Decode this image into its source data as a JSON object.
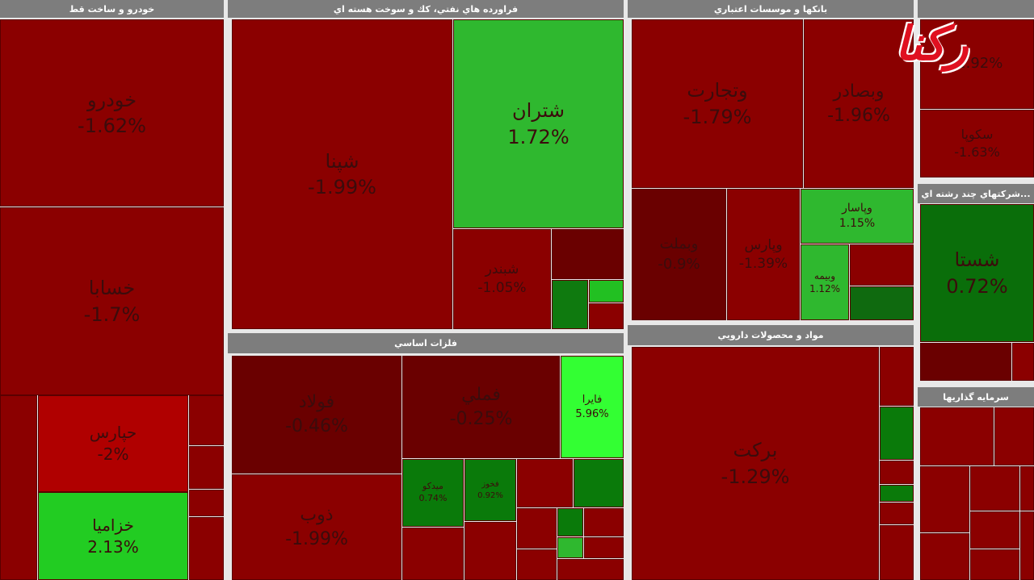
{
  "watermark": "رکنا",
  "sectors": [
    {
      "title": "خودرو و ساخت قط",
      "tiles": [
        {
          "name": "خودرو",
          "change": "-1.62%"
        },
        {
          "name": "خسابا",
          "change": "-1.7%"
        },
        {
          "name": "حپارس",
          "change": "-2%"
        },
        {
          "name": "خزامیا",
          "change": "2.13%"
        }
      ]
    },
    {
      "title": "فراورده هاي نفتي، كك و سوخت هسته اي",
      "tiles": [
        {
          "name": "شپنا",
          "change": "-1.99%"
        },
        {
          "name": "شتران",
          "change": "1.72%"
        },
        {
          "name": "شبندر",
          "change": "-1.05%"
        }
      ]
    },
    {
      "title": "بانكها و موسسات اعتباري",
      "tiles": [
        {
          "name": "وتجارت",
          "change": "-1.79%"
        },
        {
          "name": "وبصادر",
          "change": "-1.96%"
        },
        {
          "name": "وبملت",
          "change": "-0.9%"
        },
        {
          "name": "وپارس",
          "change": "-1.39%"
        },
        {
          "name": "وپاسار",
          "change": "1.15%"
        },
        {
          "name": "وبیمه",
          "change": "1.12%"
        }
      ]
    },
    {
      "tiles": [
        {
          "change": "-1.92%"
        },
        {
          "name": "سکوپا",
          "change": "-1.63%"
        }
      ]
    },
    {
      "title": "...شركتهاي چند رشته اي",
      "tiles": [
        {
          "name": "شستا",
          "change": "0.72%"
        }
      ]
    },
    {
      "title": "فلزات اساسي",
      "tiles": [
        {
          "name": "فولاد",
          "change": "-0.46%"
        },
        {
          "name": "فملي",
          "change": "-0.25%"
        },
        {
          "name": "فايرا",
          "change": "5.96%"
        },
        {
          "name": "ذوب",
          "change": "-1.99%"
        },
        {
          "name": "میدکو",
          "change": "0.74%"
        },
        {
          "name": "فخوز",
          "change": "0.92%"
        }
      ]
    },
    {
      "title": "مواد و محصولات دارويي",
      "tiles": [
        {
          "name": "بركت",
          "change": "-1.29%"
        }
      ]
    },
    {
      "title": "سرمايه گذاريها",
      "tiles": []
    }
  ]
}
